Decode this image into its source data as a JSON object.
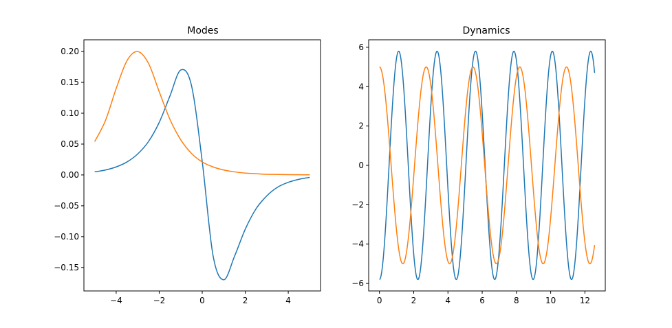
{
  "chart_data": [
    {
      "type": "line",
      "title": "Modes",
      "xlabel": "",
      "ylabel": "",
      "xlim": [
        -5.5,
        5.5
      ],
      "ylim": [
        -0.188,
        0.219
      ],
      "x_ticks": [
        -4,
        -2,
        0,
        2,
        4
      ],
      "x_tick_labels": [
        "−4",
        "−2",
        "0",
        "2",
        "4"
      ],
      "y_ticks": [
        -0.15,
        -0.1,
        -0.05,
        0.0,
        0.05,
        0.1,
        0.15,
        0.2
      ],
      "y_tick_labels": [
        "−0.15",
        "−0.10",
        "−0.05",
        "0.00",
        "0.05",
        "0.10",
        "0.15",
        "0.20"
      ],
      "grid": false,
      "series": [
        {
          "color": "#1f77b4",
          "x": [
            -5,
            -4.5,
            -4,
            -3.5,
            -3,
            -2.5,
            -2,
            -1.5,
            -1,
            -0.5,
            0,
            0.5,
            1,
            1.5,
            2,
            2.5,
            3,
            3.5,
            4,
            4.5,
            5
          ],
          "y": [
            0.005,
            0.008,
            0.013,
            0.021,
            0.034,
            0.054,
            0.085,
            0.128,
            0.17,
            0.145,
            0.022,
            -0.13,
            -0.17,
            -0.132,
            -0.088,
            -0.055,
            -0.034,
            -0.02,
            -0.012,
            -0.007,
            -0.004
          ]
        },
        {
          "color": "#ff7f0e",
          "x": [
            -5,
            -4.5,
            -4,
            -3.5,
            -3,
            -2.5,
            -2,
            -1.5,
            -1,
            -0.5,
            0,
            0.5,
            1,
            1.5,
            2,
            2.5,
            3,
            3.5,
            4,
            4.5,
            5
          ],
          "y": [
            0.054,
            0.088,
            0.14,
            0.185,
            0.2,
            0.181,
            0.135,
            0.09,
            0.057,
            0.035,
            0.021,
            0.013,
            0.008,
            0.005,
            0.003,
            0.002,
            0.001,
            0.0008,
            0.0005,
            0.0003,
            0.0002
          ]
        }
      ]
    },
    {
      "type": "line",
      "title": "Dynamics",
      "xlabel": "",
      "ylabel": "",
      "xlim": [
        -0.63,
        13.19
      ],
      "ylim": [
        -6.38,
        6.38
      ],
      "x_ticks": [
        0,
        2,
        4,
        6,
        8,
        10,
        12
      ],
      "x_tick_labels": [
        "0",
        "2",
        "4",
        "6",
        "8",
        "10",
        "12"
      ],
      "y_ticks": [
        -6,
        -4,
        -2,
        0,
        2,
        4,
        6
      ],
      "y_tick_labels": [
        "−6",
        "−4",
        "−2",
        "0",
        "2",
        "4",
        "6"
      ],
      "grid": false,
      "x_range": [
        0,
        12.566
      ],
      "series": [
        {
          "color": "#1f77b4",
          "function": "-5.8*cos(2.8*t)"
        },
        {
          "color": "#ff7f0e",
          "function": "5*cos(2.3*t)"
        }
      ]
    }
  ]
}
